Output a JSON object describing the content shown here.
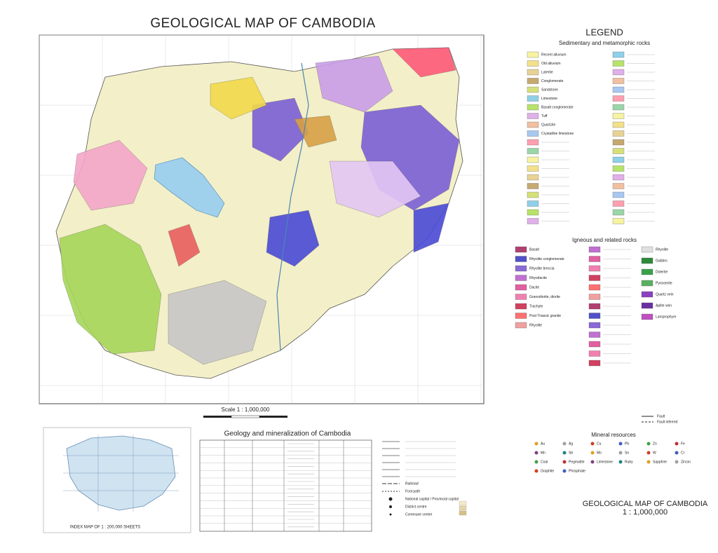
{
  "header": {
    "title": "GEOLOGICAL MAP OF CAMBODIA"
  },
  "legend": {
    "title": "LEGEND",
    "sedimentary": {
      "heading": "Sedimentary and metamorphic rocks",
      "items": [
        "Recent alluvium",
        "Old alluvium",
        "Laterite",
        "Conglomerate",
        "Sandstone",
        "Limestone",
        "Basalt conglomerate",
        "Tuff",
        "Quartzite",
        "Crystalline limestone"
      ]
    },
    "igneous": {
      "heading": "Igneous and related rocks",
      "left": [
        "Basalt",
        "Rhyolite conglomerate",
        "Rhyolite breccia",
        "Rhyodacite",
        "Dacite",
        "Granodiorite, diorite",
        "Trachyte",
        "Post Triassic granite",
        "Rhyolite"
      ],
      "right": [
        "Rhyolite",
        "Gabbro",
        "Dolerite",
        "Pyroxenite",
        "Quartz vein",
        "Aplite vein",
        "Lamprophyre"
      ]
    },
    "faults": [
      "Fault",
      "Fault inferred"
    ],
    "minerals": {
      "heading": "Mineral resources",
      "items": [
        "Au",
        "Ag",
        "Cu",
        "Pb",
        "Zn",
        "Fe",
        "Mn",
        "Sb",
        "Mo",
        "Sn",
        "W",
        "Cr",
        "Coal",
        "Pegmatite",
        "Limestone",
        "Ruby",
        "Sapphire",
        "Zircon",
        "Graphite",
        "Phosphate"
      ]
    }
  },
  "scale": "Scale 1 : 1,000,000",
  "index_map": {
    "caption": "INDEX MAP OF 1 : 200,000 SHEETS"
  },
  "geology_table": {
    "title": "Geology and mineralization of Cambodia"
  },
  "roads": [
    "Railroad",
    "Foot path",
    "National capital / Provincial capital",
    "District centre",
    "Commune centre"
  ],
  "footer": {
    "title": "GEOLOGICAL MAP OF CAMBODIA",
    "scale": "1 : 1,000,000"
  }
}
